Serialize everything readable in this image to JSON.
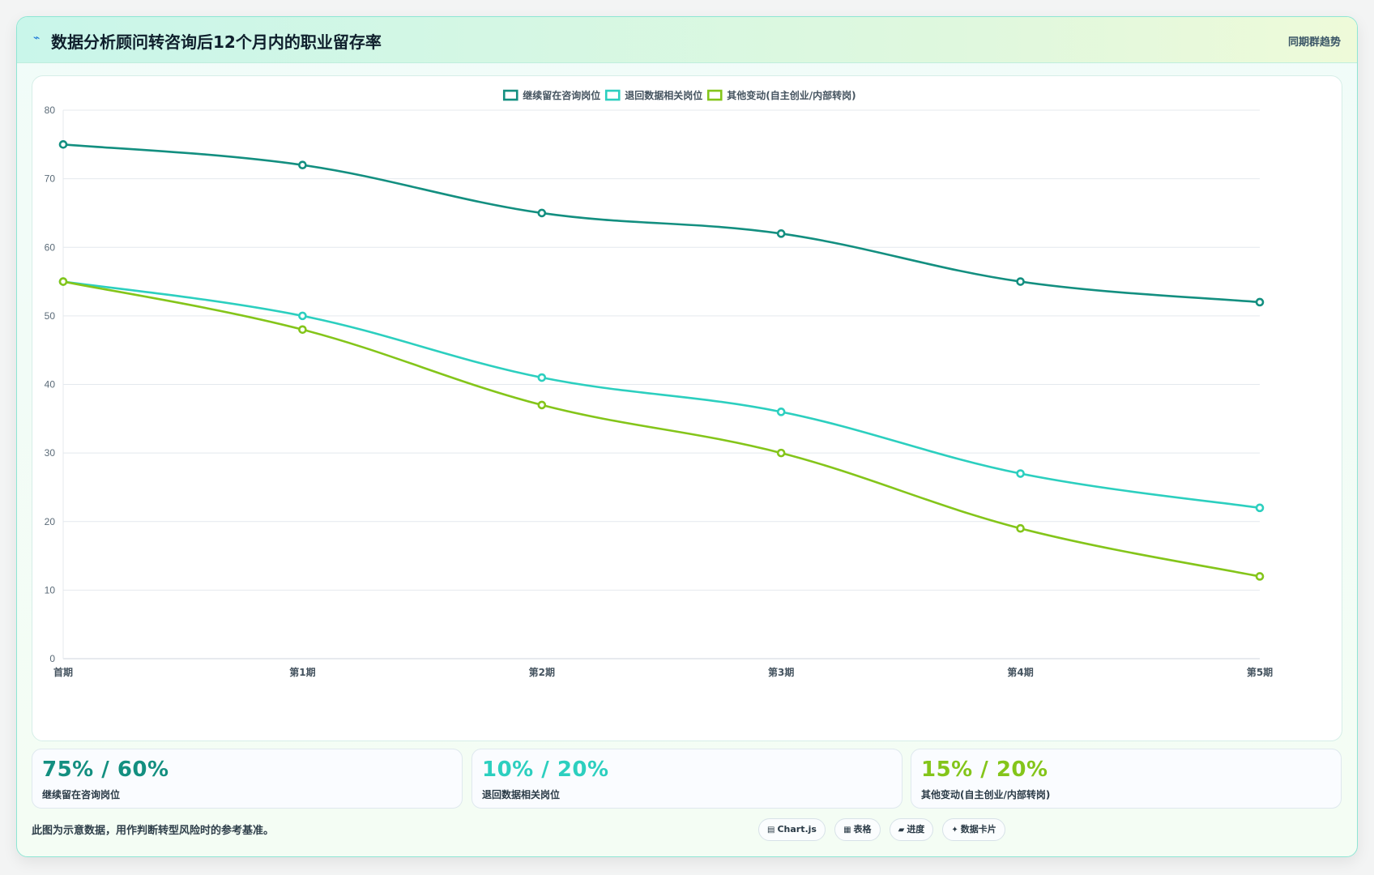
{
  "header": {
    "title": "数据分析顾问转咨询后12个月内的职业留存率",
    "tag": "同期群趋势",
    "icon": "trend-line-icon"
  },
  "chart_data": {
    "type": "line",
    "categories": [
      "首期",
      "第1期",
      "第2期",
      "第3期",
      "第4期",
      "第5期"
    ],
    "series": [
      {
        "name": "继续留在咨询岗位",
        "color": "#138f80",
        "values": [
          75,
          72,
          65,
          62,
          55,
          52
        ]
      },
      {
        "name": "退回数据相关岗位",
        "color": "#2ccfbf",
        "values": [
          55,
          50,
          41,
          36,
          27,
          22
        ]
      },
      {
        "name": "其他变动(自主创业/内部转岗)",
        "color": "#84c51a",
        "values": [
          55,
          48,
          37,
          30,
          19,
          12
        ]
      }
    ],
    "ylim": [
      0,
      80
    ],
    "yticks": [
      0,
      10,
      20,
      30,
      40,
      50,
      60,
      70,
      80
    ],
    "grid": true,
    "legend": "top-center"
  },
  "stats": [
    {
      "value": "75% / 60%",
      "label": "继续留在咨询岗位",
      "color": "#138f80"
    },
    {
      "value": "10% / 20%",
      "label": "退回数据相关岗位",
      "color": "#2ccfbf"
    },
    {
      "value": "15% / 20%",
      "label": "其他变动(自主创业/内部转岗)",
      "color": "#84c51a"
    }
  ],
  "footer": {
    "note": "此图为示意数据，用作判断转型风险时的参考基准。",
    "pills": [
      {
        "icon": "chart-icon",
        "glyph": "▤",
        "label": "Chart.js"
      },
      {
        "icon": "table-icon",
        "glyph": "▦",
        "label": "表格"
      },
      {
        "icon": "progress-icon",
        "glyph": "▰",
        "label": "进度"
      },
      {
        "icon": "sparkle-icon",
        "glyph": "✦",
        "label": "数据卡片"
      }
    ]
  }
}
